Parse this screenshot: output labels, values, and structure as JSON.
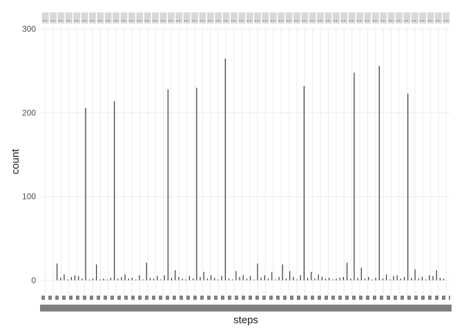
{
  "chart_data": {
    "type": "bar",
    "title": "",
    "xlabel": "steps",
    "ylabel": "count",
    "ylim": [
      -20,
      320
    ],
    "y_ticks": [
      0,
      100,
      200,
      300
    ],
    "grid": true,
    "legend": "none",
    "facet_strips": 52,
    "colors": {
      "bar": "#333333",
      "grid": "#ebebeb",
      "strip": "#d9d9d9",
      "tick_text": "#4d4d4d",
      "axis_title": "#1a1a1a",
      "overplot": "#808080"
    },
    "series": [
      {
        "values": [
          20,
          3,
          7,
          1,
          4,
          6,
          5,
          2,
          206,
          1,
          2,
          19,
          1,
          2,
          1,
          3,
          214,
          2,
          4,
          7,
          2,
          3,
          1,
          6,
          1,
          21,
          3,
          2,
          5,
          1,
          6,
          228,
          3,
          12,
          4,
          2,
          1,
          5,
          2,
          230,
          4,
          10,
          2,
          6,
          3,
          1,
          5,
          265,
          2,
          1,
          11,
          4,
          6,
          2,
          5,
          1,
          20,
          3,
          6,
          2,
          10,
          1,
          4,
          19,
          2,
          11,
          4,
          1,
          6,
          232,
          3,
          10,
          2,
          7,
          4,
          2,
          3,
          1,
          2,
          3,
          4,
          21,
          2,
          248,
          3,
          15,
          2,
          4,
          1,
          3,
          256,
          2,
          7,
          1,
          5,
          6,
          2,
          4,
          223,
          3,
          13,
          2,
          4,
          1,
          6,
          5,
          12,
          3,
          2
        ]
      }
    ]
  }
}
